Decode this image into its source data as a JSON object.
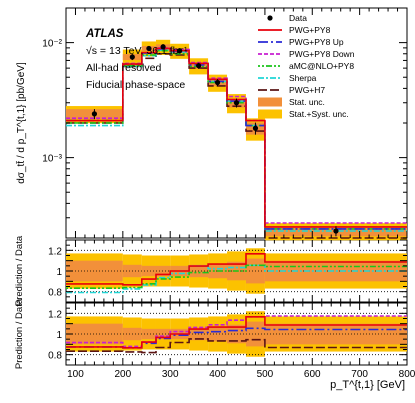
{
  "chart_data": {
    "type": "line",
    "experiment": "ATLAS",
    "annotations": [
      "ATLAS",
      "√s = 13 TeV, 36.1 fb⁻¹",
      "All-had resolved",
      "Fiducial phase-space"
    ],
    "ylabel": "dσ_tt̄ / d p_T^{t,1} [pb/GeV]",
    "xlabel": "p_T^{t,1} [GeV]",
    "ratio_ylabel": "Prediction / Data",
    "x_ticks": [
      "100",
      "200",
      "300",
      "400",
      "500",
      "600",
      "700",
      "800"
    ],
    "y_ticks_main": [
      "10⁻³",
      "10⁻²"
    ],
    "y_ticks_ratio": [
      "0.8",
      "1",
      "1.2"
    ],
    "xlim": [
      80,
      800
    ],
    "ylim_main": [
      0.0002,
      0.02
    ],
    "yscale_main": "log",
    "ylim_ratio": [
      0.7,
      1.3
    ],
    "bin_edges": [
      80,
      200,
      240,
      270,
      300,
      340,
      380,
      420,
      460,
      500,
      800
    ],
    "data": [
      0.0024,
      0.0075,
      0.0089,
      0.0092,
      0.0085,
      0.0063,
      0.0045,
      0.003,
      0.0018,
      0.00023
    ],
    "stat_unc_rel": [
      0.1,
      0.06,
      0.05,
      0.05,
      0.05,
      0.06,
      0.07,
      0.09,
      0.12,
      0.1
    ],
    "syst_unc_rel": [
      0.17,
      0.16,
      0.15,
      0.15,
      0.15,
      0.16,
      0.17,
      0.19,
      0.22,
      0.17
    ],
    "series": [
      {
        "name": "PWG+PY8",
        "color": "#e8000b",
        "dash": "solid",
        "values": [
          0.0021,
          0.0065,
          0.0082,
          0.0089,
          0.0085,
          0.0066,
          0.0048,
          0.0032,
          0.0021,
          0.00025
        ]
      },
      {
        "name": "PWG+PY8 Up",
        "color": "#2b2bd6",
        "dash": "10,3,2,3",
        "values": [
          0.0021,
          0.0065,
          0.0081,
          0.0088,
          0.0084,
          0.0064,
          0.0046,
          0.0031,
          0.0019,
          0.00024
        ]
      },
      {
        "name": "PWG+PY8 Down",
        "color": "#c71fd0",
        "dash": "4,2",
        "values": [
          0.0022,
          0.0066,
          0.0082,
          0.009,
          0.0087,
          0.0067,
          0.0049,
          0.0034,
          0.0021,
          0.00027
        ]
      },
      {
        "name": "aMC@NLO+PY8",
        "color": "#1bc41b",
        "dash": "2,2,2,2,6,2",
        "values": [
          0.002,
          0.0063,
          0.0078,
          0.0085,
          0.008,
          0.0062,
          0.0045,
          0.003,
          0.0019,
          0.00024
        ]
      },
      {
        "name": "Sherpa",
        "color": "#21d6d6",
        "dash": "6,2,2,2",
        "values": [
          0.0019,
          0.0062,
          0.0077,
          0.0086,
          0.0083,
          0.0066,
          0.0046,
          0.0031,
          0.0019,
          0.00023
        ]
      },
      {
        "name": "PWG+H7",
        "color": "#5a1414",
        "dash": "9,3",
        "values": [
          0.002,
          0.0062,
          0.0073,
          0.008,
          0.0078,
          0.006,
          0.0042,
          0.0028,
          0.0017,
          0.0002
        ]
      }
    ],
    "ratio_panel_1_series": [
      "PWG+PY8",
      "aMC@NLO+PY8",
      "Sherpa"
    ],
    "ratio_panel_2_series": [
      "PWG+PY8",
      "PWG+PY8 Up",
      "PWG+PY8 Down",
      "PWG+H7"
    ],
    "legend": [
      "Data",
      "PWG+PY8",
      "PWG+PY8 Up",
      "PWG+PY8 Down",
      "aMC@NLO+PY8",
      "Sherpa",
      "PWG+H7",
      "Stat. unc.",
      "Stat.+Syst. unc."
    ],
    "legend_position": "top-right",
    "colors": {
      "stat": "#f2903a",
      "syst": "#fcc200",
      "data": "#000000"
    }
  }
}
